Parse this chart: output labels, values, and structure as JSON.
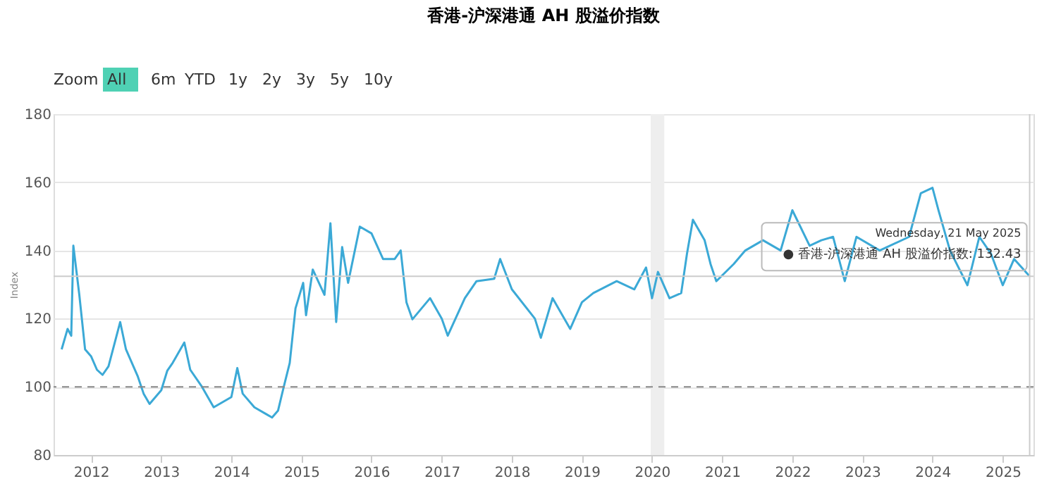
{
  "chart_data": {
    "type": "line",
    "title": "香港-沪深港通 AH 股溢价指数",
    "ylabel": "Index",
    "x": [
      "2011-08",
      "2011-09-01",
      "2011-09-20",
      "2011-10-01",
      "2011-11",
      "2011-12",
      "2012-01",
      "2012-02",
      "2012-03",
      "2012-04",
      "2012-06",
      "2012-07",
      "2012-09",
      "2012-10",
      "2012-11",
      "2013-01",
      "2013-02",
      "2013-03",
      "2013-05",
      "2013-06",
      "2013-08",
      "2013-10",
      "2014-01",
      "2014-02",
      "2014-03",
      "2014-05",
      "2014-07",
      "2014-08",
      "2014-09",
      "2014-10",
      "2014-11",
      "2014-12",
      "2015-01-10",
      "2015-01-25",
      "2015-03",
      "2015-05",
      "2015-06",
      "2015-07",
      "2015-08",
      "2015-09",
      "2015-11",
      "2016-01",
      "2016-03",
      "2016-05",
      "2016-06",
      "2016-07",
      "2016-08",
      "2016-11",
      "2017-01",
      "2017-02",
      "2017-05",
      "2017-07",
      "2017-10",
      "2017-11",
      "2018-01",
      "2018-05",
      "2018-06",
      "2018-08",
      "2018-11",
      "2019-01",
      "2019-03",
      "2019-07",
      "2019-10",
      "2019-12",
      "2020-01",
      "2020-02",
      "2020-04",
      "2020-06",
      "2020-07",
      "2020-08",
      "2020-10",
      "2020-11",
      "2020-12",
      "2021-03",
      "2021-05",
      "2021-08",
      "2021-11",
      "2022-01",
      "2022-04",
      "2022-06",
      "2022-08",
      "2022-10",
      "2022-12",
      "2023-04",
      "2023-09",
      "2023-11",
      "2024-01",
      "2024-02",
      "2024-04",
      "2024-07",
      "2024-09",
      "2024-11",
      "2025-01",
      "2025-03",
      "2025-05-21"
    ],
    "series": [
      {
        "color": "#3ba9d6",
        "values": [
          111,
          117,
          115,
          141.4,
          127,
          111,
          109,
          105,
          103.5,
          106,
          119,
          111,
          103,
          98,
          95,
          99,
          104.7,
          107,
          113,
          105,
          100,
          94,
          97,
          105.5,
          98,
          94,
          92,
          91,
          93,
          100,
          107,
          123,
          130.5,
          121,
          134.4,
          127,
          148,
          119,
          141,
          130.5,
          147,
          145,
          137.5,
          137.5,
          140,
          124.8,
          119.8,
          126,
          120,
          115,
          126,
          131,
          131.7,
          137.5,
          128.6,
          120,
          114.4,
          126,
          117,
          124.8,
          127.5,
          131,
          128.6,
          135,
          126,
          133.7,
          126,
          127.5,
          139,
          149,
          143,
          136,
          131,
          136,
          140,
          143,
          140,
          151.8,
          141.4,
          143,
          144,
          131,
          144,
          140,
          144,
          156.8,
          158.4,
          151.8,
          140,
          129.8,
          144,
          139,
          129.8,
          137.5,
          132.43
        ]
      }
    ],
    "xlim": [
      "2011-06-20",
      "2025-06-10"
    ],
    "xticks": [
      "2012",
      "2013",
      "2014",
      "2015",
      "2016",
      "2017",
      "2018",
      "2019",
      "2020",
      "2021",
      "2022",
      "2023",
      "2024",
      "2025"
    ],
    "ylim": [
      80,
      180
    ],
    "yticks": [
      80,
      100,
      120,
      140,
      160,
      180
    ],
    "grid": "y",
    "ref_lines": [
      {
        "axis": "y",
        "value": 100,
        "color": "#888888",
        "line_style": "dashed"
      },
      {
        "axis": "y",
        "value": 132.43,
        "color": "#cccccc",
        "line_style": "solid"
      },
      {
        "axis": "x",
        "value": "2025-05-21",
        "color": "#cccccc",
        "line_style": "solid"
      }
    ],
    "bands": [
      {
        "axis": "x",
        "from": "2019-12-25",
        "to": "2020-03-05",
        "color": "#eeeeee"
      }
    ],
    "annotations": [
      "Zoom",
      "All",
      "6m",
      "YTD",
      "1y",
      "2y",
      "3y",
      "5y",
      "10y",
      {
        "text": "Wednesday, 21 May 2025\n● 香港-沪深港通 AH 股溢价指数: 132.43",
        "x": "2025-05-21",
        "y": 132.43
      }
    ]
  }
}
